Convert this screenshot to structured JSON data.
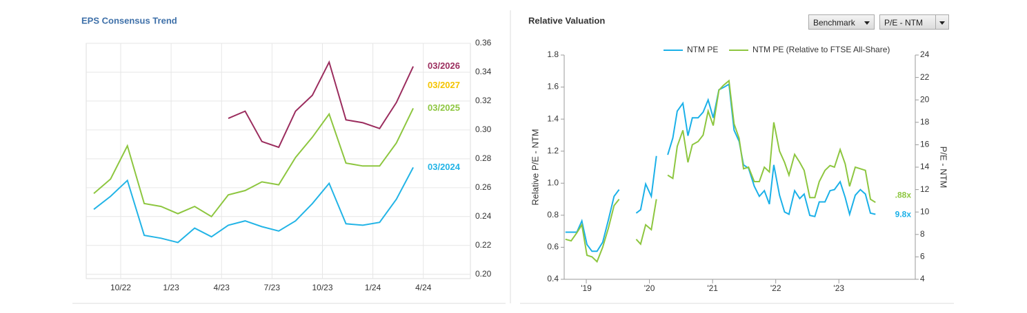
{
  "controls": [
    "Benchmark",
    "P/E - NTM"
  ],
  "chart_data": [
    {
      "type": "line",
      "title": "EPS Consensus Trend",
      "x": [
        8.4,
        9.4,
        10.4,
        11.4,
        12.4,
        13.4,
        14.4,
        15.4,
        16.4,
        17.4,
        18.4,
        19.4,
        20.4,
        21.4,
        22.4,
        23.4,
        24.4,
        25.4,
        26.4,
        27.4
      ],
      "xlim": [
        7.95,
        30.8
      ],
      "xticks": [
        {
          "value": 10,
          "label": "10/22"
        },
        {
          "value": 13,
          "label": "1/23"
        },
        {
          "value": 16,
          "label": "4/23"
        },
        {
          "value": 19,
          "label": "7/23"
        },
        {
          "value": 22,
          "label": "10/23"
        },
        {
          "value": 25,
          "label": "1/24"
        },
        {
          "value": 28,
          "label": "4/24"
        }
      ],
      "ylim": [
        0.197,
        0.36
      ],
      "yticks": [
        {
          "value": 0.2,
          "label": "0.20"
        },
        0.22,
        0.24,
        0.26,
        0.28,
        {
          "value": 0.3,
          "label": "0.30"
        },
        0.32,
        0.34,
        0.36
      ],
      "grid": true,
      "series": [
        {
          "name": "03/2026",
          "color": "#9b2d5e",
          "values": [
            null,
            null,
            null,
            null,
            null,
            null,
            null,
            null,
            0.308,
            0.313,
            0.292,
            0.288,
            0.313,
            0.324,
            0.347,
            0.307,
            0.305,
            0.301,
            0.319,
            0.344
          ]
        },
        {
          "name": "03/2027",
          "color": "#f5c400",
          "values": [
            null,
            null,
            null,
            null,
            null,
            null,
            null,
            null,
            null,
            null,
            null,
            null,
            null,
            null,
            null,
            null,
            null,
            null,
            null,
            null
          ]
        },
        {
          "name": "03/2025",
          "color": "#8dc63f",
          "values": [
            0.256,
            0.266,
            0.289,
            0.249,
            0.247,
            0.242,
            0.247,
            0.24,
            0.255,
            0.258,
            0.264,
            0.262,
            0.281,
            0.295,
            0.311,
            0.277,
            0.275,
            0.275,
            0.291,
            0.315
          ]
        },
        {
          "name": "03/2024",
          "color": "#22b4e6",
          "values": [
            0.245,
            0.254,
            0.265,
            0.227,
            0.225,
            0.222,
            0.232,
            0.226,
            0.234,
            0.237,
            0.233,
            0.23,
            0.237,
            0.249,
            0.263,
            0.235,
            0.234,
            0.236,
            0.252,
            0.274
          ]
        }
      ]
    },
    {
      "type": "line",
      "title": "Relative Valuation",
      "y_label": "Relative P/E - NTM",
      "y2_label": "P/E - NTM",
      "x": [
        2018.67,
        2018.76,
        2018.85,
        2018.93,
        2019.01,
        2019.09,
        2019.17,
        2019.26,
        2019.35,
        2019.44,
        2019.52,
        2019.66,
        2019.79,
        2019.86,
        2019.94,
        2020.03,
        2020.11,
        2020.2,
        2020.29,
        2020.37,
        2020.44,
        2020.53,
        2020.61,
        2020.68,
        2020.77,
        2020.85,
        2020.93,
        2021.01,
        2021.1,
        2021.17,
        2021.26,
        2021.34,
        2021.42,
        2021.49,
        2021.57,
        2021.66,
        2021.74,
        2021.82,
        2021.9,
        2021.97,
        2022.06,
        2022.14,
        2022.21,
        2022.3,
        2022.38,
        2022.45,
        2022.54,
        2022.62,
        2022.69,
        2022.78,
        2022.86,
        2022.93,
        2023.02,
        2023.1,
        2023.17,
        2023.26,
        2023.34,
        2023.42,
        2023.5,
        2023.58
      ],
      "xlim": [
        2018.65,
        2024.21
      ],
      "xticks": [
        {
          "value": 2019,
          "label": "'19"
        },
        {
          "value": 2020,
          "label": "'20"
        },
        {
          "value": 2021,
          "label": "'21"
        },
        {
          "value": 2022,
          "label": "'22"
        },
        {
          "value": 2023,
          "label": "'23"
        }
      ],
      "ylim": [
        0.4,
        1.8
      ],
      "yticks": [
        0.4,
        0.6,
        0.8,
        {
          "value": 1.0,
          "label": "1.0"
        },
        1.2,
        1.4,
        1.6,
        1.8
      ],
      "y2lim": [
        4,
        24
      ],
      "y2ticks": [
        4,
        6,
        8,
        10,
        12,
        14,
        16,
        18,
        20,
        22,
        24
      ],
      "grid": false,
      "legend": "top",
      "series": [
        {
          "name": "NTM PE",
          "color": "#1ab0e8",
          "axis": "y2",
          "last_label": "9.8x",
          "values": [
            8.2,
            8.2,
            8.2,
            9.2,
            7.1,
            6.5,
            6.5,
            7.3,
            9.3,
            11.4,
            12.0,
            null,
            9.9,
            10.2,
            12.5,
            11.4,
            15.0,
            null,
            15.1,
            16.6,
            19.0,
            19.7,
            16.8,
            18.4,
            18.4,
            18.9,
            20.0,
            18.4,
            20.9,
            21.1,
            21.4,
            17.3,
            16.3,
            14.2,
            13.9,
            12.3,
            11.4,
            11.9,
            10.7,
            14.2,
            11.5,
            10.0,
            9.8,
            11.9,
            11.2,
            11.6,
            9.7,
            9.6,
            10.9,
            10.9,
            11.9,
            12.0,
            12.7,
            11.3,
            9.8,
            11.5,
            12.0,
            11.6,
            9.9,
            9.8
          ]
        },
        {
          "name": "NTM PE (Relative to FTSE All-Share)",
          "color": "#8dc63f",
          "last_label": ".88x",
          "values": [
            0.65,
            0.64,
            0.69,
            0.74,
            0.55,
            0.54,
            0.51,
            0.6,
            0.72,
            0.86,
            0.9,
            null,
            0.65,
            0.62,
            0.74,
            0.71,
            0.9,
            null,
            1.05,
            1.03,
            1.23,
            1.33,
            1.13,
            1.24,
            1.26,
            1.3,
            1.45,
            1.36,
            1.58,
            1.61,
            1.64,
            1.37,
            1.28,
            1.09,
            1.1,
            1.01,
            1.01,
            1.1,
            1.07,
            1.38,
            1.2,
            1.13,
            1.05,
            1.18,
            1.13,
            1.08,
            0.91,
            0.91,
            1.01,
            1.08,
            1.11,
            1.1,
            1.21,
            1.12,
            0.98,
            1.1,
            1.09,
            1.08,
            0.9,
            0.88
          ]
        }
      ]
    }
  ]
}
